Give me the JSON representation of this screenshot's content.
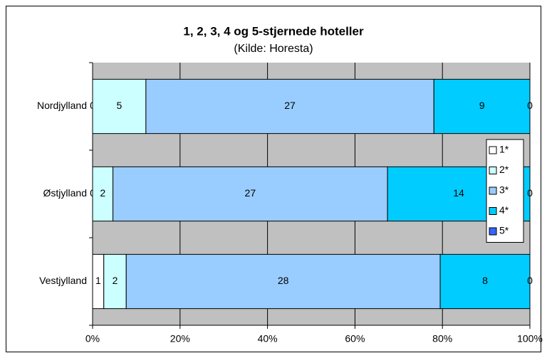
{
  "chart_data": {
    "type": "bar",
    "orientation": "horizontal",
    "stacking": "percent",
    "title": "1, 2, 3, 4 og 5-stjernede hoteller",
    "subtitle": "(Kilde: Horesta)",
    "categories": [
      "Nordjylland",
      "Østjylland",
      "Vestjylland"
    ],
    "series": [
      {
        "name": "1*",
        "color": "#ffffff",
        "values": [
          0,
          0,
          1
        ]
      },
      {
        "name": "2*",
        "color": "#ccffff",
        "values": [
          5,
          2,
          2
        ]
      },
      {
        "name": "3*",
        "color": "#99ccff",
        "values": [
          27,
          27,
          28
        ]
      },
      {
        "name": "4*",
        "color": "#00ccff",
        "values": [
          9,
          14,
          8
        ]
      },
      {
        "name": "5*",
        "color": "#3366ff",
        "values": [
          0,
          0,
          0
        ]
      }
    ],
    "xlim": [
      0,
      100
    ],
    "xticks": [
      {
        "value": 0,
        "label": "0%"
      },
      {
        "value": 20,
        "label": "20%"
      },
      {
        "value": 40,
        "label": "40%"
      },
      {
        "value": 60,
        "label": "60%"
      },
      {
        "value": 80,
        "label": "80%"
      },
      {
        "value": 100,
        "label": "100%"
      }
    ],
    "grid": true,
    "legend": "right",
    "plot_background": "#c0c0c0"
  }
}
